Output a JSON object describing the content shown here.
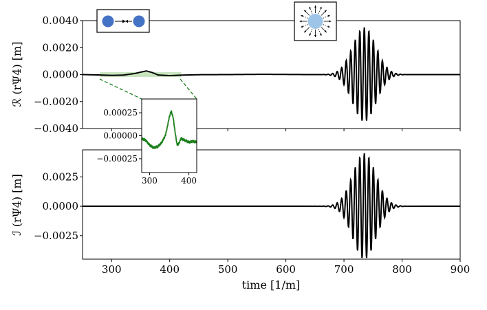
{
  "chart_data": [
    {
      "type": "line",
      "panel": "top",
      "ylabel": "ℛ (rΨ4) [m]",
      "xlim": [
        250,
        900
      ],
      "ylim": [
        -0.004,
        0.004
      ],
      "xticks": [
        300,
        400,
        500,
        600,
        700,
        800,
        900
      ],
      "yticks": [
        -0.004,
        -0.002,
        0.0,
        0.002,
        0.004
      ],
      "yticklabels": [
        "−0.0040",
        "−0.0020",
        "0.0000",
        "0.0020",
        "0.0040"
      ],
      "grid": false,
      "highlight_region": {
        "x": [
          280,
          420
        ],
        "y": [
          -0.00018,
          0.00018
        ],
        "color": "#bfe0b4"
      },
      "icons": [
        "binary-merger-icon",
        "radiating-star-icon"
      ],
      "series": [
        {
          "color": "#000000",
          "precursor": {
            "x": [
              250,
              280,
              300,
              320,
              340,
              350,
              360,
              370,
              380,
              400,
              420,
              450,
              500,
              560,
              640
            ],
            "y": [
              0.0,
              -3e-05,
              -6e-05,
              -4e-05,
              8e-05,
              0.00018,
              0.00027,
              0.00015,
              -3e-05,
              -8e-05,
              -4e-05,
              -1e-05,
              0.0,
              2e-05,
              0.0
            ]
          },
          "burst": {
            "center": 735,
            "sigma": 20,
            "period": 7.8,
            "amplitude": 0.0035
          }
        }
      ]
    },
    {
      "type": "line",
      "panel": "bottom",
      "xlabel": "time [1/m]",
      "ylabel": "ℐ (rΨ4) [m]",
      "xlim": [
        250,
        900
      ],
      "ylim": [
        -0.0045,
        0.0048
      ],
      "xticks": [
        300,
        400,
        500,
        600,
        700,
        800,
        900
      ],
      "xticklabels": [
        "300",
        "400",
        "500",
        "600",
        "700",
        "800",
        "900"
      ],
      "yticks": [
        -0.0025,
        0.0,
        0.0025
      ],
      "yticklabels": [
        "−0.0025",
        "0.0000",
        "0.0025"
      ],
      "grid": false,
      "series": [
        {
          "color": "#000000",
          "precursor": {
            "x": [
              250,
              640
            ],
            "y": [
              0.0,
              0.0
            ]
          },
          "burst": {
            "center": 735,
            "sigma": 20,
            "period": 7.8,
            "amplitude": 0.0045
          }
        }
      ]
    },
    {
      "type": "line",
      "panel": "inset",
      "xlim": [
        280,
        420
      ],
      "ylim": [
        -0.0004,
        0.0004
      ],
      "xticks": [
        300,
        400
      ],
      "xticklabels": [
        "300",
        "400"
      ],
      "yticks": [
        -0.00025,
        0.0,
        0.00025
      ],
      "yticklabels": [
        "−0.00025",
        "0.00000",
        "0.00025"
      ],
      "grid": false,
      "series": [
        {
          "color": "#1a7f1a",
          "x": [
            280,
            290,
            300,
            310,
            320,
            330,
            340,
            345,
            350,
            355,
            360,
            365,
            370,
            375,
            380,
            390,
            400,
            410,
            420
          ],
          "y": [
            -3e-05,
            -5e-05,
            -0.0001,
            -0.00013,
            -0.00012,
            -8e-05,
            0.0,
            9e-05,
            0.0002,
            0.00027,
            0.0002,
            4e-05,
            -0.0001,
            -8e-05,
            -3e-05,
            -5e-05,
            -7e-05,
            -6e-05,
            -7e-05
          ]
        }
      ]
    }
  ]
}
